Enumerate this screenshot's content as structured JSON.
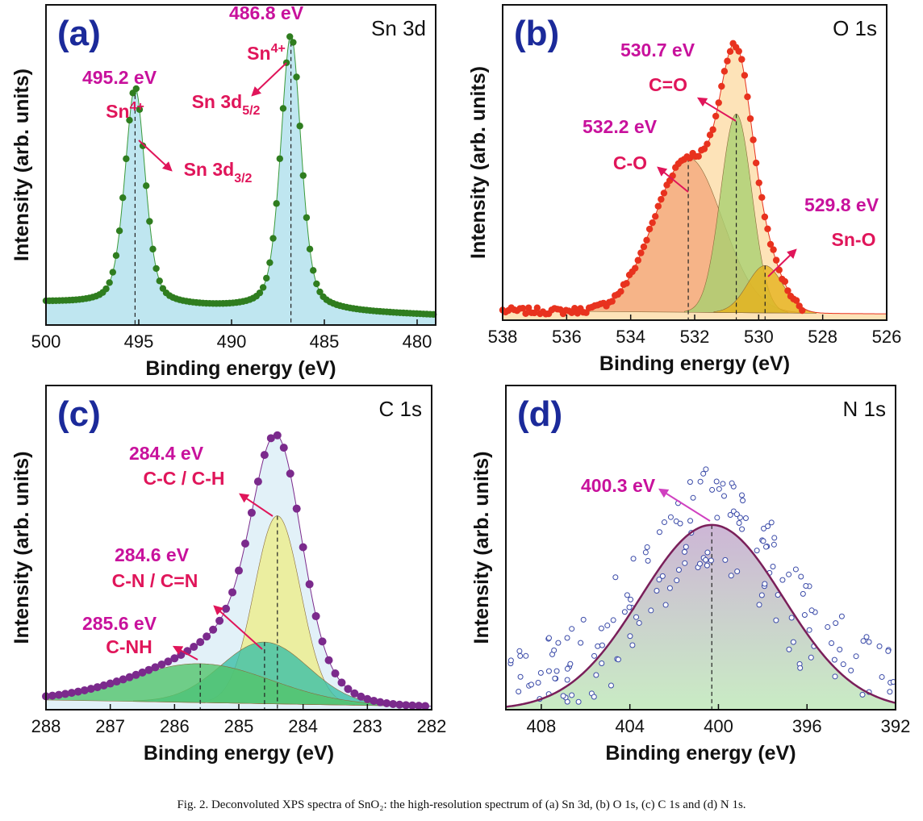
{
  "caption": "Fig. 2.  Deconvoluted XPS spectra of SnO₂: the high-resolution spectrum of (a) Sn 3d, (b) O 1s, (c) C 1s and (d) N 1s.",
  "chart_data": [
    {
      "type": "scatter",
      "panel_label": "(a)",
      "title": "Sn 3d",
      "xlabel": "Binding energy (eV)",
      "ylabel": "Intensity (arb. units)",
      "xlim": [
        500,
        479
      ],
      "xticks": [
        500,
        495,
        490,
        485,
        480
      ],
      "y_units": "arbitrary (normalized)",
      "grid": false,
      "colors": {
        "points": "#2f7d1f",
        "fill": "#bfe6f0",
        "fit": "#3a9a3a"
      },
      "background": [
        0.07,
        0.03
      ],
      "components": [
        {
          "center": 495.2,
          "fwhm": 1.3,
          "height": 0.68,
          "energy_label": "495.2 eV",
          "state": {
            "base": "Sn",
            "sup": "4+"
          },
          "assignment": {
            "base": "Sn 3d",
            "sub": "3/2"
          }
        },
        {
          "center": 486.8,
          "fwhm": 1.3,
          "height": 0.86,
          "energy_label": "486.8 eV",
          "state": {
            "base": "Sn",
            "sup": "4+"
          },
          "assignment": {
            "base": "Sn 3d",
            "sub": "5/2"
          }
        }
      ]
    },
    {
      "type": "scatter",
      "panel_label": "(b)",
      "title": "O 1s",
      "xlabel": "Binding energy (eV)",
      "ylabel": "Intensity (arb. units)",
      "xlim": [
        538,
        526
      ],
      "xticks": [
        538,
        536,
        534,
        532,
        530,
        528,
        526
      ],
      "grid": false,
      "colors": {
        "points": "#e8321e",
        "envelope": "#fde3b8"
      },
      "background": [
        0.03,
        0.02
      ],
      "components": [
        {
          "center": 532.2,
          "fwhm": 2.5,
          "height": 0.49,
          "energy_label": "532.2 eV",
          "assignment": "C-O",
          "color": "#f4a87c"
        },
        {
          "center": 530.7,
          "fwhm": 1.15,
          "height": 0.63,
          "energy_label": "530.7 eV",
          "assignment": "C=O",
          "color": "#a9d070"
        },
        {
          "center": 529.8,
          "fwhm": 1.3,
          "height": 0.15,
          "energy_label": "529.8 eV",
          "assignment": "Sn-O",
          "color": "#e6b21c"
        }
      ]
    },
    {
      "type": "scatter",
      "panel_label": "(c)",
      "title": "C 1s",
      "xlabel": "Binding energy (eV)",
      "ylabel": "Intensity (arb. units)",
      "xlim": [
        288,
        282
      ],
      "xticks": [
        288,
        287,
        286,
        285,
        284,
        283,
        282
      ],
      "grid": false,
      "colors": {
        "points": "#7b2a8c",
        "envelope": "#e2f1f8"
      },
      "background": [
        0.03,
        0.01
      ],
      "components": [
        {
          "center": 284.4,
          "fwhm": 0.85,
          "height": 0.58,
          "energy_label": "284.4 eV",
          "assignment": "C-C / C-H",
          "color": "#eeee8a"
        },
        {
          "center": 284.6,
          "fwhm": 1.6,
          "height": 0.19,
          "energy_label": "284.6 eV",
          "assignment": "C-N / C=N",
          "color": "#3cbfa6"
        },
        {
          "center": 285.6,
          "fwhm": 2.6,
          "height": 0.12,
          "energy_label": "285.6 eV",
          "assignment": "C-NH",
          "color": "#52c46c"
        }
      ]
    },
    {
      "type": "scatter",
      "panel_label": "(d)",
      "title": "N 1s",
      "xlabel": "Binding energy (eV)",
      "ylabel": "Intensity (arb. units)",
      "xlim": [
        409.6,
        392
      ],
      "xticks": [
        408,
        404,
        400,
        396,
        392
      ],
      "grid": false,
      "colors": {
        "points": "#3a4aa8",
        "fit": "#7a1f5a",
        "fill_top": "#cdb6d6",
        "fill_bottom": "#c9ecc4"
      },
      "background": [
        0,
        0
      ],
      "components": [
        {
          "center": 400.3,
          "fwhm": 7.6,
          "height": 0.57,
          "energy_label": "400.3 eV"
        }
      ]
    }
  ]
}
